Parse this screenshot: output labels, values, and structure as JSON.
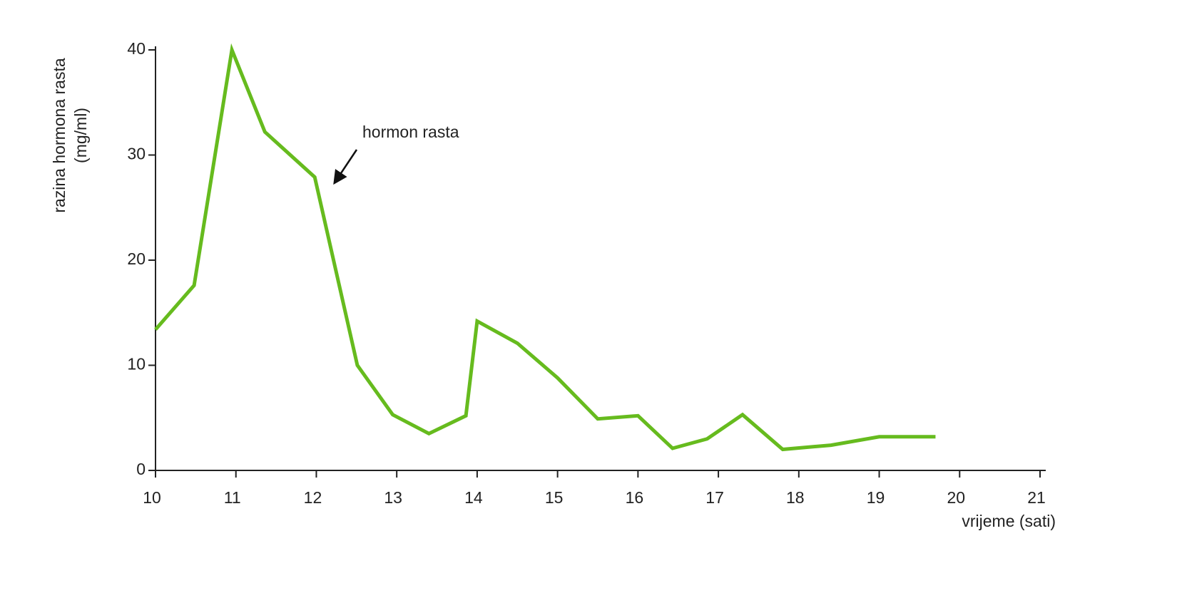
{
  "chart_data": {
    "type": "line",
    "ylabel": [
      "razina hormona rasta",
      "(mg/ml)"
    ],
    "xlabel": "vrijeme (sati)",
    "annotation": "hormon rasta",
    "x": [
      10,
      10.48,
      10.95,
      11.36,
      11.98,
      12.51,
      12.95,
      13.4,
      13.86,
      14.0,
      14.5,
      15.0,
      15.5,
      16.0,
      16.43,
      16.86,
      17.3,
      17.8,
      18.4,
      19.0,
      19.7
    ],
    "values": [
      13.4,
      17.6,
      40,
      32.2,
      27.9,
      10.0,
      5.3,
      3.5,
      5.2,
      14.2,
      12.1,
      8.8,
      4.9,
      5.2,
      2.1,
      3.0,
      5.3,
      2.0,
      2.4,
      3.2,
      3.2
    ],
    "color": "#66bb1e",
    "xlim": [
      10,
      21
    ],
    "xticks": [
      10,
      11,
      12,
      13,
      14,
      15,
      16,
      17,
      18,
      19,
      20,
      21
    ],
    "ylim": [
      0,
      40
    ],
    "yticks": [
      0,
      10,
      20,
      30,
      40
    ]
  }
}
